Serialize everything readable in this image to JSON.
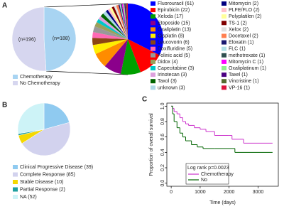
{
  "chart_data": [
    {
      "type": "pie",
      "panel": "A",
      "categories": [
        "Chemotherapy",
        "No Chemotherapy"
      ],
      "values": [
        188,
        196
      ],
      "value_labels": [
        "(n=188)",
        "(n=196)"
      ],
      "colors": [
        "#a8d4f2",
        "#d6d6ef"
      ]
    },
    {
      "type": "pie",
      "categories": [
        "Fluorouracil",
        "Epirubicin",
        "Xeloda",
        "Etoposide",
        "Oxaliplatin",
        "Cisplatin",
        "Leucovorin",
        "Doxifluridine",
        "Folinic acid",
        "Didox",
        "Capecitabine",
        "Irinotecan",
        "Taxol",
        "unknown",
        "Mitomycin",
        "PLFE/FLO",
        "Polyplatilen",
        "TS-1",
        "Xelox",
        "Docetaxel",
        "Eloxatin",
        "FLC",
        "methotrexate",
        "Mitomycin C",
        "Oxaliplatinum",
        "Taxel",
        "Vincristine",
        "VP-16"
      ],
      "values": [
        61,
        22,
        17,
        15,
        13,
        8,
        6,
        5,
        5,
        4,
        3,
        3,
        3,
        3,
        2,
        2,
        2,
        2,
        2,
        2,
        1,
        1,
        1,
        1,
        1,
        1,
        1,
        1
      ],
      "value_labels": [
        "(61)",
        "(22)",
        "(17)",
        "(15)",
        "(13)",
        "(8)",
        "(6)",
        "(5)",
        "(5)",
        "(4)",
        "(3)",
        "(3)",
        "(3)",
        "(3)",
        "(2)",
        "(2)",
        "(2)",
        "(2)",
        "(2)",
        "(2)",
        "(1)",
        "(1)",
        "(1)",
        "(1)",
        "(1)",
        "(1)",
        "(1)",
        "(1)"
      ],
      "colors": [
        "#0000ff",
        "#ff0000",
        "#00a000",
        "#8b008b",
        "#ff8c00",
        "#ffee00",
        "#8b4513",
        "#ff69b4",
        "#999999",
        "#9aa05a",
        "#00c8c8",
        "#dda0dd",
        "#006400",
        "#add8e6",
        "#000080",
        "#ffc0cb",
        "#ffff99",
        "#800000",
        "#e0e0e0",
        "#ff7f50",
        "#191970",
        "#b0e0e6",
        "#2f4f4f",
        "#ff00ff",
        "#90ee90",
        "#4b0082",
        "#556b2f",
        "#dc143c"
      ]
    },
    {
      "type": "pie",
      "panel": "B",
      "categories": [
        "Clinical Progressive Disease",
        "Complete Response",
        "Stable Disease",
        "Partial Response",
        "NA"
      ],
      "values": [
        39,
        85,
        10,
        2,
        52
      ],
      "value_labels": [
        "(39)",
        "(85)",
        "(10)",
        "(2)",
        "(52)"
      ],
      "colors": [
        "#8fcaf0",
        "#d2d2ee",
        "#f5d800",
        "#1fa0a0",
        "#cdf3f7"
      ]
    },
    {
      "type": "step",
      "panel": "C",
      "xlabel": "Time (days)",
      "ylabel": "Proportion of overall survival",
      "annotation": "Log rank p=0.0023",
      "series": [
        {
          "name": "Chemotherapy",
          "color": "#cc33cc",
          "x": [
            0,
            50,
            100,
            200,
            300,
            400,
            500,
            600,
            800,
            1000,
            1200,
            1500,
            2000,
            2100,
            2500,
            3500
          ],
          "values": [
            1,
            0.97,
            0.93,
            0.9,
            0.85,
            0.8,
            0.77,
            0.75,
            0.72,
            0.7,
            0.67,
            0.62,
            0.62,
            0.57,
            0.52,
            0.52
          ]
        },
        {
          "name": "No",
          "color": "#006400",
          "x": [
            0,
            50,
            100,
            200,
            300,
            400,
            500,
            700,
            900,
            1100,
            1500,
            2200,
            3500
          ],
          "values": [
            1,
            0.9,
            0.8,
            0.72,
            0.65,
            0.6,
            0.55,
            0.5,
            0.47,
            0.45,
            0.45,
            0.4,
            0.4
          ]
        }
      ],
      "xlim": [
        -150,
        3700
      ],
      "xticks": [
        0,
        1000,
        2000,
        3000
      ],
      "ylim": [
        -0.04,
        1.04
      ],
      "yticks": [
        {
          "value": 0,
          "label": "0.0"
        },
        {
          "value": 0.2,
          "label": "0.2"
        },
        {
          "value": 0.4,
          "label": "0.4"
        },
        {
          "value": 0.6,
          "label": "0.6"
        },
        {
          "value": 0.8,
          "label": "0.8"
        },
        {
          "value": 1,
          "label": "1.0"
        }
      ]
    }
  ]
}
